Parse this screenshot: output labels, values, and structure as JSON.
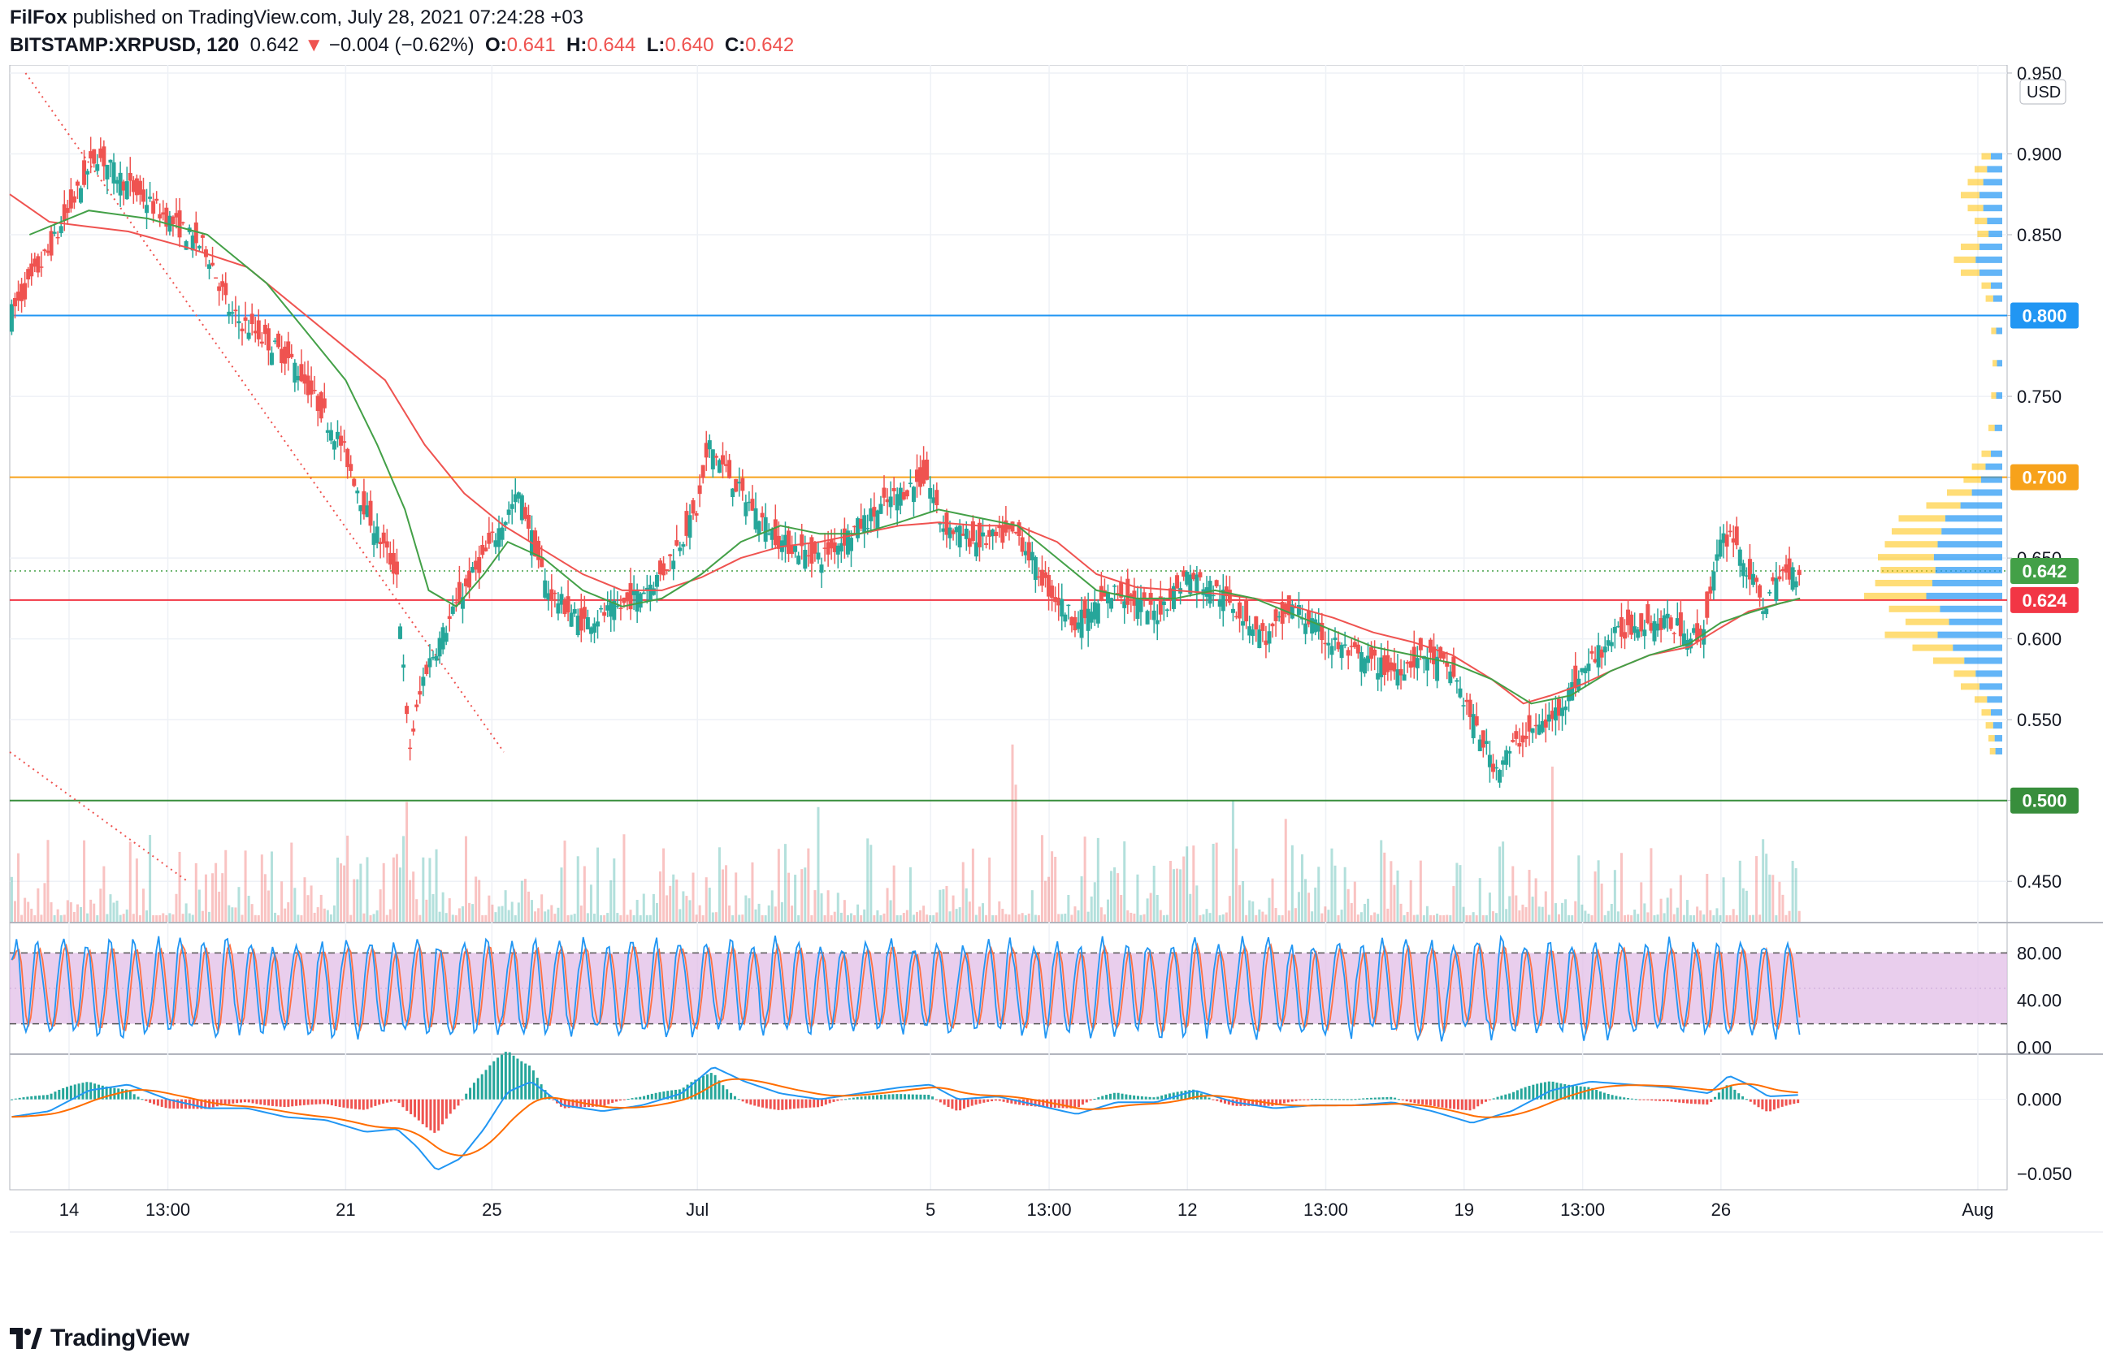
{
  "header": {
    "publisher": "FilFox",
    "published_text": "published on TradingView.com, July 28, 2021 07:24:28 +03",
    "symbol": "BITSTAMP:XRPUSD, 120",
    "last": "0.642",
    "change_arrow": "▼",
    "change": "−0.004 (−0.62%)",
    "open_label": "O:",
    "open": "0.641",
    "high_label": "H:",
    "high": "0.644",
    "low_label": "L:",
    "low": "0.640",
    "close_label": "C:",
    "close": "0.642"
  },
  "footer": {
    "brand": "TradingView"
  },
  "colors": {
    "up": "#26a69a",
    "down": "#ef5350",
    "blue_level": "#2196f3",
    "orange_level": "#f7a21b",
    "red_level": "#f23645",
    "green_level": "#388e3c",
    "ma_fast": "#43a047",
    "ma_slow": "#ef5350",
    "stoch_k": "#2196f3",
    "stoch_d": "#ff7043",
    "stoch_band": "#e1bee7",
    "macd_line": "#2196f3",
    "signal_line": "#ff6d00"
  },
  "chart_data": [
    {
      "type": "candlestick",
      "pane": "price",
      "currency": "USD",
      "ylim": [
        0.425,
        0.955
      ],
      "y_ticks": [
        "0.950",
        "0.900",
        "0.850",
        "0.800",
        "0.750",
        "0.700",
        "0.650",
        "0.600",
        "0.550",
        "0.500",
        "0.450"
      ],
      "x_ticks": [
        "14",
        "13:00",
        "21",
        "25",
        "Jul",
        "5",
        "13:00",
        "12",
        "13:00",
        "19",
        "13:00",
        "26",
        "Aug"
      ],
      "x_tick_days": [
        13.5,
        16,
        20.5,
        24.2,
        29.4,
        35.3,
        38.3,
        41.8,
        45.3,
        48.8,
        51.8,
        55.3,
        61.8
      ],
      "x_range_days": [
        12,
        62.5
      ],
      "close_path": [
        [
          12.0,
          0.8
        ],
        [
          13.0,
          0.84
        ],
        [
          13.8,
          0.88
        ],
        [
          14.2,
          0.9
        ],
        [
          15.0,
          0.88
        ],
        [
          16.0,
          0.86
        ],
        [
          17.0,
          0.84
        ],
        [
          17.6,
          0.8
        ],
        [
          18.2,
          0.79
        ],
        [
          19.2,
          0.77
        ],
        [
          20.4,
          0.72
        ],
        [
          21.0,
          0.68
        ],
        [
          21.8,
          0.64
        ],
        [
          22.1,
          0.53
        ],
        [
          22.5,
          0.58
        ],
        [
          23.5,
          0.63
        ],
        [
          24.2,
          0.66
        ],
        [
          24.9,
          0.69
        ],
        [
          25.6,
          0.63
        ],
        [
          26.5,
          0.61
        ],
        [
          27.5,
          0.62
        ],
        [
          28.5,
          0.64
        ],
        [
          29.4,
          0.68
        ],
        [
          29.7,
          0.72
        ],
        [
          30.5,
          0.69
        ],
        [
          31.5,
          0.66
        ],
        [
          32.5,
          0.65
        ],
        [
          33.5,
          0.67
        ],
        [
          34.5,
          0.69
        ],
        [
          35.2,
          0.7
        ],
        [
          35.6,
          0.67
        ],
        [
          36.5,
          0.66
        ],
        [
          37.5,
          0.665
        ],
        [
          38.3,
          0.63
        ],
        [
          39.0,
          0.61
        ],
        [
          40.0,
          0.63
        ],
        [
          41.0,
          0.615
        ],
        [
          41.8,
          0.64
        ],
        [
          42.5,
          0.63
        ],
        [
          43.0,
          0.62
        ],
        [
          43.8,
          0.6
        ],
        [
          44.5,
          0.62
        ],
        [
          45.3,
          0.6
        ],
        [
          46.0,
          0.59
        ],
        [
          47.0,
          0.58
        ],
        [
          47.8,
          0.59
        ],
        [
          48.5,
          0.58
        ],
        [
          49.0,
          0.55
        ],
        [
          49.6,
          0.52
        ],
        [
          50.3,
          0.54
        ],
        [
          51.0,
          0.55
        ],
        [
          51.8,
          0.58
        ],
        [
          52.5,
          0.6
        ],
        [
          53.2,
          0.61
        ],
        [
          54.0,
          0.61
        ],
        [
          54.8,
          0.6
        ],
        [
          55.3,
          0.66
        ],
        [
          55.6,
          0.665
        ],
        [
          56.0,
          0.64
        ],
        [
          56.4,
          0.62
        ],
        [
          56.8,
          0.64
        ],
        [
          57.3,
          0.642
        ]
      ],
      "ma_fast": [
        [
          12.5,
          0.85
        ],
        [
          14.0,
          0.865
        ],
        [
          15.5,
          0.86
        ],
        [
          17.0,
          0.85
        ],
        [
          18.5,
          0.82
        ],
        [
          19.5,
          0.79
        ],
        [
          20.5,
          0.76
        ],
        [
          21.3,
          0.72
        ],
        [
          22.0,
          0.68
        ],
        [
          22.6,
          0.63
        ],
        [
          23.3,
          0.62
        ],
        [
          24.0,
          0.64
        ],
        [
          24.6,
          0.66
        ],
        [
          25.5,
          0.65
        ],
        [
          26.5,
          0.63
        ],
        [
          27.5,
          0.62
        ],
        [
          28.5,
          0.625
        ],
        [
          29.5,
          0.64
        ],
        [
          30.5,
          0.66
        ],
        [
          31.5,
          0.67
        ],
        [
          32.5,
          0.665
        ],
        [
          33.5,
          0.665
        ],
        [
          34.5,
          0.672
        ],
        [
          35.5,
          0.68
        ],
        [
          36.5,
          0.675
        ],
        [
          37.5,
          0.67
        ],
        [
          38.5,
          0.65
        ],
        [
          39.5,
          0.63
        ],
        [
          40.5,
          0.625
        ],
        [
          41.5,
          0.625
        ],
        [
          42.5,
          0.63
        ],
        [
          43.5,
          0.625
        ],
        [
          44.5,
          0.615
        ],
        [
          45.5,
          0.605
        ],
        [
          46.5,
          0.595
        ],
        [
          47.5,
          0.59
        ],
        [
          48.5,
          0.585
        ],
        [
          49.5,
          0.575
        ],
        [
          50.5,
          0.56
        ],
        [
          51.5,
          0.565
        ],
        [
          52.5,
          0.58
        ],
        [
          53.5,
          0.59
        ],
        [
          54.5,
          0.597
        ],
        [
          55.3,
          0.61
        ],
        [
          56.0,
          0.616
        ],
        [
          56.8,
          0.622
        ],
        [
          57.3,
          0.625
        ]
      ],
      "ma_slow": [
        [
          12.0,
          0.875
        ],
        [
          13.0,
          0.858
        ],
        [
          14.0,
          0.855
        ],
        [
          15.0,
          0.852
        ],
        [
          16.5,
          0.842
        ],
        [
          18.0,
          0.83
        ],
        [
          19.5,
          0.8
        ],
        [
          20.5,
          0.78
        ],
        [
          21.5,
          0.76
        ],
        [
          22.5,
          0.72
        ],
        [
          23.5,
          0.69
        ],
        [
          24.5,
          0.67
        ],
        [
          25.5,
          0.655
        ],
        [
          26.5,
          0.64
        ],
        [
          27.5,
          0.63
        ],
        [
          28.5,
          0.63
        ],
        [
          29.5,
          0.638
        ],
        [
          30.5,
          0.65
        ],
        [
          31.5,
          0.657
        ],
        [
          32.5,
          0.66
        ],
        [
          33.5,
          0.665
        ],
        [
          34.5,
          0.67
        ],
        [
          35.5,
          0.672
        ],
        [
          36.5,
          0.67
        ],
        [
          37.5,
          0.67
        ],
        [
          38.5,
          0.66
        ],
        [
          39.5,
          0.64
        ],
        [
          40.5,
          0.632
        ],
        [
          41.5,
          0.63
        ],
        [
          42.5,
          0.628
        ],
        [
          43.5,
          0.625
        ],
        [
          44.5,
          0.62
        ],
        [
          45.5,
          0.613
        ],
        [
          46.5,
          0.604
        ],
        [
          47.5,
          0.598
        ],
        [
          48.5,
          0.59
        ],
        [
          49.5,
          0.575
        ],
        [
          50.3,
          0.56
        ],
        [
          51.0,
          0.565
        ],
        [
          51.8,
          0.572
        ],
        [
          52.5,
          0.58
        ],
        [
          53.5,
          0.59
        ],
        [
          54.5,
          0.595
        ],
        [
          55.3,
          0.607
        ],
        [
          56.0,
          0.617
        ],
        [
          56.8,
          0.622
        ],
        [
          57.3,
          0.625
        ]
      ],
      "horizontal_levels": [
        {
          "value": 0.8,
          "label": "0.800",
          "color": "#2196f3"
        },
        {
          "value": 0.7,
          "label": "0.700",
          "color": "#f7a21b"
        },
        {
          "value": 0.624,
          "label": "0.624",
          "color": "#f23645"
        },
        {
          "value": 0.5,
          "label": "0.500",
          "color": "#388e3c"
        }
      ],
      "last_price": {
        "value": 0.642,
        "label": "0.642",
        "color": "#43a047"
      },
      "trend_lines": [
        {
          "x1": 12.4,
          "y1": 0.95,
          "x2": 24.5,
          "y2": 0.53
        },
        {
          "x1": 12.0,
          "y1": 0.53,
          "x2": 16.5,
          "y2": 0.45
        }
      ],
      "volume_profile": [
        {
          "price": 0.898,
          "vol": 0.15
        },
        {
          "price": 0.89,
          "vol": 0.2
        },
        {
          "price": 0.882,
          "vol": 0.25
        },
        {
          "price": 0.874,
          "vol": 0.3
        },
        {
          "price": 0.866,
          "vol": 0.25
        },
        {
          "price": 0.858,
          "vol": 0.2
        },
        {
          "price": 0.85,
          "vol": 0.18
        },
        {
          "price": 0.842,
          "vol": 0.3
        },
        {
          "price": 0.834,
          "vol": 0.35
        },
        {
          "price": 0.826,
          "vol": 0.3
        },
        {
          "price": 0.818,
          "vol": 0.15
        },
        {
          "price": 0.81,
          "vol": 0.12
        },
        {
          "price": 0.79,
          "vol": 0.08
        },
        {
          "price": 0.77,
          "vol": 0.07
        },
        {
          "price": 0.75,
          "vol": 0.08
        },
        {
          "price": 0.73,
          "vol": 0.1
        },
        {
          "price": 0.714,
          "vol": 0.15
        },
        {
          "price": 0.706,
          "vol": 0.22
        },
        {
          "price": 0.698,
          "vol": 0.28
        },
        {
          "price": 0.69,
          "vol": 0.4
        },
        {
          "price": 0.682,
          "vol": 0.55
        },
        {
          "price": 0.674,
          "vol": 0.75
        },
        {
          "price": 0.666,
          "vol": 0.8
        },
        {
          "price": 0.658,
          "vol": 0.85
        },
        {
          "price": 0.65,
          "vol": 0.9
        },
        {
          "price": 0.642,
          "vol": 0.88
        },
        {
          "price": 0.634,
          "vol": 0.92
        },
        {
          "price": 0.626,
          "vol": 1.0
        },
        {
          "price": 0.618,
          "vol": 0.82
        },
        {
          "price": 0.61,
          "vol": 0.7
        },
        {
          "price": 0.602,
          "vol": 0.85
        },
        {
          "price": 0.594,
          "vol": 0.65
        },
        {
          "price": 0.586,
          "vol": 0.5
        },
        {
          "price": 0.578,
          "vol": 0.35
        },
        {
          "price": 0.57,
          "vol": 0.3
        },
        {
          "price": 0.562,
          "vol": 0.2
        },
        {
          "price": 0.554,
          "vol": 0.15
        },
        {
          "price": 0.546,
          "vol": 0.12
        },
        {
          "price": 0.538,
          "vol": 0.1
        },
        {
          "price": 0.53,
          "vol": 0.09
        }
      ]
    },
    {
      "type": "line",
      "pane": "stochastic",
      "ylim": [
        -5,
        105
      ],
      "y_ticks": [
        "80.00",
        "40.00",
        "0.00"
      ],
      "band": [
        20,
        80
      ]
    },
    {
      "type": "histogram+line",
      "pane": "macd",
      "ylim": [
        -0.06,
        0.03
      ],
      "y_ticks": [
        "0.000",
        "−0.050"
      ],
      "macd_path": [
        [
          12.0,
          -0.012
        ],
        [
          13.0,
          -0.008
        ],
        [
          14.0,
          0.006
        ],
        [
          15.0,
          0.01
        ],
        [
          16.0,
          0.0
        ],
        [
          17.0,
          -0.006
        ],
        [
          18.0,
          -0.006
        ],
        [
          19.0,
          -0.012
        ],
        [
          20.0,
          -0.014
        ],
        [
          21.0,
          -0.022
        ],
        [
          21.8,
          -0.02
        ],
        [
          22.3,
          -0.032
        ],
        [
          22.8,
          -0.048
        ],
        [
          23.4,
          -0.04
        ],
        [
          24.0,
          -0.02
        ],
        [
          24.6,
          0.005
        ],
        [
          25.2,
          0.012
        ],
        [
          26.0,
          -0.004
        ],
        [
          27.0,
          -0.008
        ],
        [
          28.0,
          -0.004
        ],
        [
          29.0,
          0.004
        ],
        [
          29.8,
          0.022
        ],
        [
          30.6,
          0.012
        ],
        [
          31.5,
          0.004
        ],
        [
          32.5,
          0.0
        ],
        [
          33.5,
          0.004
        ],
        [
          34.5,
          0.008
        ],
        [
          35.3,
          0.01
        ],
        [
          36.0,
          0.0
        ],
        [
          37.0,
          0.002
        ],
        [
          38.0,
          -0.004
        ],
        [
          39.0,
          -0.01
        ],
        [
          40.0,
          -0.002
        ],
        [
          41.0,
          -0.002
        ],
        [
          42.0,
          0.006
        ],
        [
          43.0,
          -0.002
        ],
        [
          44.0,
          -0.006
        ],
        [
          45.0,
          -0.004
        ],
        [
          46.0,
          -0.004
        ],
        [
          47.0,
          -0.002
        ],
        [
          48.0,
          -0.008
        ],
        [
          49.0,
          -0.016
        ],
        [
          50.0,
          -0.008
        ],
        [
          51.0,
          0.006
        ],
        [
          52.0,
          0.012
        ],
        [
          53.0,
          0.01
        ],
        [
          54.0,
          0.008
        ],
        [
          55.0,
          0.004
        ],
        [
          55.5,
          0.016
        ],
        [
          56.0,
          0.01
        ],
        [
          56.5,
          0.002
        ],
        [
          57.3,
          0.003
        ]
      ]
    }
  ]
}
